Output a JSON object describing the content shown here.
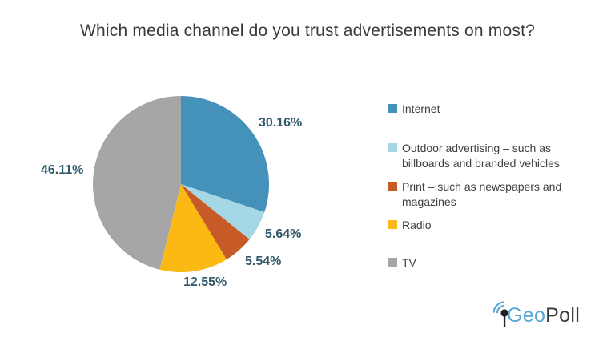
{
  "chart_data": {
    "type": "pie",
    "title": "Which media channel do you trust advertisements on most?",
    "categories": [
      "Internet",
      "Outdoor advertising – such as billboards and branded vehicles",
      "Print – such as newspapers and magazines",
      "Radio",
      "TV"
    ],
    "values": [
      30.16,
      5.64,
      5.54,
      12.55,
      46.11
    ],
    "value_labels": [
      "30.16%",
      "5.64%",
      "5.54%",
      "12.55%",
      "46.11%"
    ],
    "colors": [
      "#4492ba",
      "#a5d7e4",
      "#c75b28",
      "#fcb813",
      "#a6a6a6"
    ],
    "start_angle_deg": 0,
    "direction": "clockwise",
    "legend_position": "right",
    "label_color": "#31586b"
  },
  "legend": {
    "items": [
      {
        "label": "Internet",
        "color": "#4492ba"
      },
      {
        "label": "Outdoor advertising – such as billboards and branded vehicles",
        "color": "#a5d7e4"
      },
      {
        "label": "Print – such as newspapers and magazines",
        "color": "#c75b28"
      },
      {
        "label": "Radio",
        "color": "#fcb813"
      },
      {
        "label": "TV",
        "color": "#a6a6a6"
      }
    ]
  },
  "logo": {
    "geo": "Geo",
    "poll": "Poll",
    "blue": "#56a7d5",
    "dark": "#2b2b2b"
  }
}
